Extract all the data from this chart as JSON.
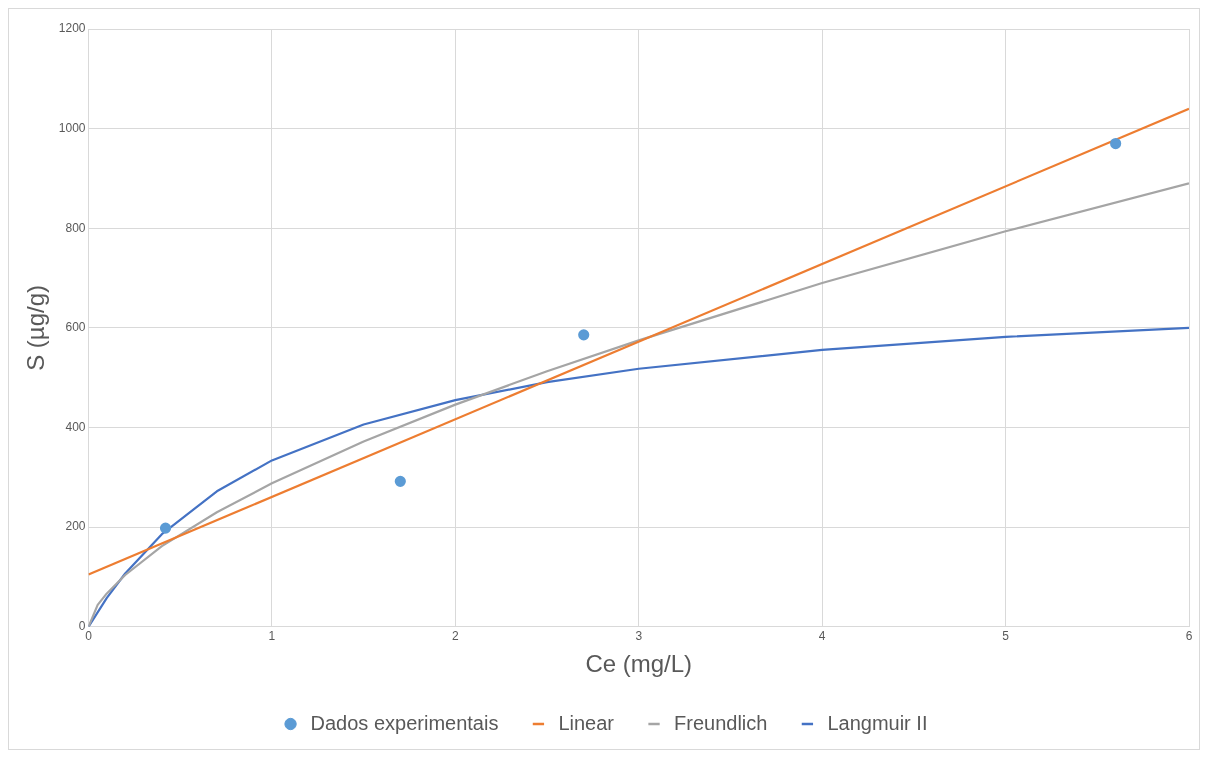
{
  "chart_data": {
    "type": "line",
    "xlabel": "Ce (mg/L)",
    "ylabel": "S (µg/g)",
    "xlim": [
      0,
      6
    ],
    "xticks": [
      0,
      1,
      2,
      3,
      4,
      5,
      6
    ],
    "ylim": [
      0,
      1200
    ],
    "yticks": [
      0,
      200,
      400,
      600,
      800,
      1000,
      1200
    ],
    "grid": true,
    "legend": "bottom",
    "marker": "none",
    "line_style": "solid",
    "series": [
      {
        "name": "Dados experimentais",
        "type": "scatter",
        "marker": "circle",
        "color": "#5b9bd5",
        "x": [
          0.42,
          1.7,
          2.7,
          5.6
        ],
        "values": [
          198,
          292,
          586,
          970
        ]
      },
      {
        "name": "Linear",
        "type": "line",
        "color": "#ed7d31",
        "x": [
          0,
          6
        ],
        "values": [
          105,
          1040
        ]
      },
      {
        "name": "Freundlich",
        "type": "line",
        "color": "#a5a5a5",
        "x": [
          0,
          0.05,
          0.1,
          0.2,
          0.4,
          0.7,
          1,
          1.5,
          2,
          2.5,
          3,
          4,
          5,
          6
        ],
        "values": [
          0,
          44,
          67,
          104,
          162,
          230,
          288,
          372,
          446,
          513,
          575,
          690,
          794,
          890
        ]
      },
      {
        "name": "Langmuir II",
        "type": "line",
        "color": "#4472c4",
        "x": [
          0,
          0.1,
          0.2,
          0.4,
          0.7,
          1,
          1.5,
          2,
          2.5,
          3,
          4,
          5,
          6
        ],
        "values": [
          0,
          58,
          107,
          186,
          272,
          334,
          406,
          455,
          491,
          518,
          556,
          582,
          600
        ]
      }
    ]
  }
}
